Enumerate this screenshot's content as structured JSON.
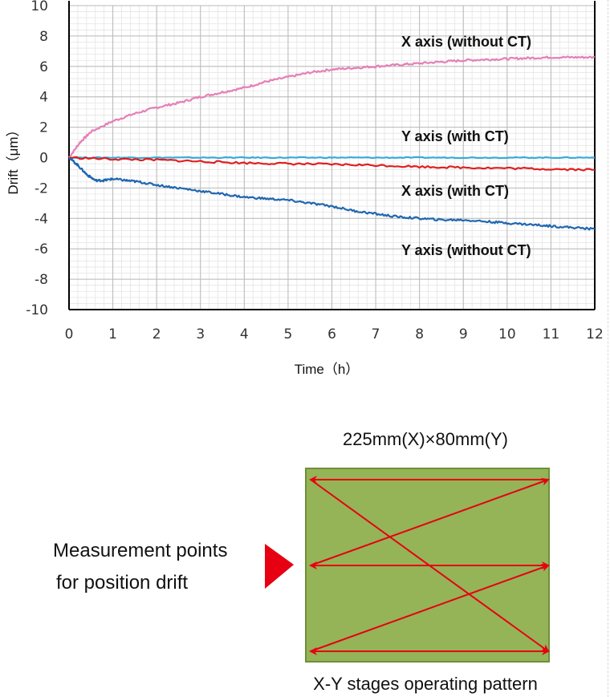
{
  "chart_data": {
    "type": "line",
    "xlabel": "Time（h）",
    "ylabel": "Drift（μm）",
    "xlim": [
      0,
      12
    ],
    "ylim": [
      -10,
      10
    ],
    "xticks": [
      0,
      1,
      2,
      3,
      4,
      5,
      6,
      7,
      8,
      9,
      10,
      11,
      12
    ],
    "yticks": [
      10,
      8,
      6,
      4,
      2,
      0,
      -2,
      -4,
      -6,
      -8,
      -10
    ],
    "grid": true,
    "series": [
      {
        "name": "X axis (without CT)",
        "color": "#e57fb7",
        "x": [
          0,
          0.25,
          0.5,
          1,
          1.5,
          2,
          2.5,
          3,
          3.5,
          4,
          4.5,
          5,
          5.5,
          6,
          6.5,
          7,
          7.5,
          8,
          8.5,
          9,
          9.5,
          10,
          10.5,
          11,
          11.5,
          12
        ],
        "y": [
          0,
          1.0,
          1.7,
          2.4,
          2.9,
          3.3,
          3.6,
          4.0,
          4.3,
          4.6,
          5.0,
          5.3,
          5.6,
          5.8,
          5.9,
          6.0,
          6.1,
          6.2,
          6.3,
          6.4,
          6.45,
          6.5,
          6.55,
          6.6,
          6.6,
          6.6
        ]
      },
      {
        "name": "Y axis (with CT)",
        "color": "#3aaad6",
        "x": [
          0,
          1,
          2,
          3,
          4,
          5,
          6,
          7,
          8,
          9,
          10,
          11,
          12
        ],
        "y": [
          0,
          0,
          0,
          0,
          0,
          0,
          0,
          0,
          0,
          0,
          0,
          0,
          0
        ]
      },
      {
        "name": "X axis (with CT)",
        "color": "#e02020",
        "x": [
          0,
          1,
          2,
          3,
          4,
          5,
          6,
          7,
          8,
          9,
          10,
          11,
          12
        ],
        "y": [
          0,
          -0.1,
          -0.15,
          -0.25,
          -0.35,
          -0.4,
          -0.45,
          -0.5,
          -0.6,
          -0.65,
          -0.7,
          -0.75,
          -0.8
        ]
      },
      {
        "name": "Y axis (without CT)",
        "color": "#1f67b0",
        "x": [
          0,
          0.2,
          0.4,
          0.6,
          0.8,
          1,
          1.3,
          1.6,
          2,
          2.5,
          3,
          3.5,
          4,
          4.5,
          5,
          5.5,
          6,
          6.5,
          7,
          7.5,
          8,
          8.5,
          9,
          9.5,
          10,
          10.5,
          11,
          11.5,
          12
        ],
        "y": [
          0,
          -0.5,
          -1.1,
          -1.5,
          -1.5,
          -1.4,
          -1.5,
          -1.6,
          -1.8,
          -2.0,
          -2.2,
          -2.4,
          -2.6,
          -2.7,
          -2.8,
          -3.0,
          -3.2,
          -3.5,
          -3.7,
          -3.9,
          -4.0,
          -4.1,
          -4.1,
          -4.2,
          -4.3,
          -4.4,
          -4.5,
          -4.6,
          -4.7
        ]
      }
    ]
  },
  "diagram": {
    "stage_size": "225mm(X)×80mm(Y)",
    "caption": "X-Y stages operating pattern",
    "measurement_label_line1": "Measurement points",
    "measurement_label_line2": "for position drift",
    "stage_color": "#94b457",
    "stage_border": "#6f8f3a",
    "arrow_color": "#e60012",
    "pointer_color": "#e60012"
  }
}
